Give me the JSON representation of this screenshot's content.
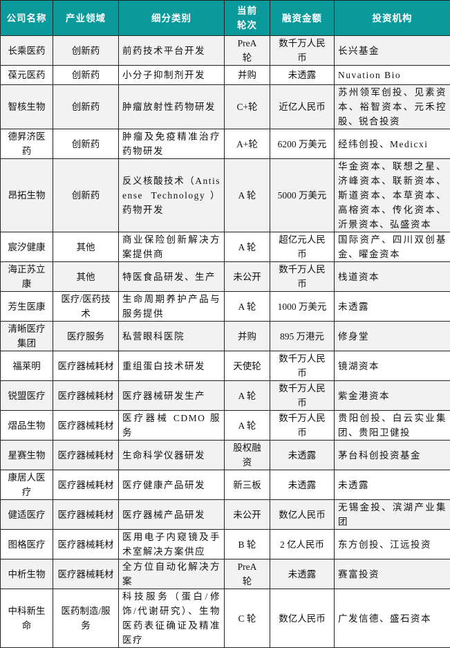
{
  "header_color": "#0b9a9c",
  "columns": [
    "公司名称",
    "产业领域",
    "细分类别",
    "当前轮次",
    "融资金额",
    "投资机构"
  ],
  "rows": [
    {
      "company": "长乘医药",
      "field": "创新药",
      "category": "前药技术平台开发",
      "round": "PreA 轮",
      "amount": "数千万人民币",
      "investors": "长兴基金"
    },
    {
      "company": "葆元医药",
      "field": "创新药",
      "category": "小分子抑制剂开发",
      "round": "并购",
      "amount": "未透露",
      "investors": "Nuvation Bio"
    },
    {
      "company": "智核生物",
      "field": "创新药",
      "category": "肿瘤放射性药物研发",
      "round": "C+轮",
      "amount": "近亿人民币",
      "investors": "苏州领军创投、见素资本、裕智资本、元禾控股、锐合投资"
    },
    {
      "company": "德昇济医药",
      "field": "创新药",
      "category": "肿瘤及免疫精准治疗药物研发",
      "round": "A+轮",
      "amount": "6200 万美元",
      "investors": "经纬创投、Medicxi"
    },
    {
      "company": "昂拓生物",
      "field": "创新药",
      "category": "反义核酸技术（Antisense Technology）药物开发",
      "round": "A 轮",
      "amount": "5000 万美元",
      "investors": "华金资本、联想之星、济峰资本、联新资本、斯道资本、本草资本、高榕资本、传化资本、沂景资本、弘盛资本"
    },
    {
      "company": "宸汐健康",
      "field": "其他",
      "category": "商业保险创新解决方案提供商",
      "round": "A 轮",
      "amount": "超亿元人民币",
      "investors": "国际资产、四川双创基金、曜金资本"
    },
    {
      "company": "海正苏立康",
      "field": "其他",
      "category": "特医食品研发、生产",
      "round": "未公开",
      "amount": "数千万人民币",
      "investors": "栈道资本"
    },
    {
      "company": "芳生医康",
      "field": "医疗/医药技术",
      "category": "生命周期养护产品与服务提供",
      "round": "A 轮",
      "amount": "1000 万美元",
      "investors": "未透露"
    },
    {
      "company": "清晰医疗集团",
      "field": "医疗服务",
      "category": "私营眼科医院",
      "round": "并购",
      "amount": "895 万港元",
      "investors": "修身堂"
    },
    {
      "company": "福莱明",
      "field": "医疗器械耗材",
      "category": "重组蛋白技术研发",
      "round": "天使轮",
      "amount": "数千万人民币",
      "investors": "镜湖资本"
    },
    {
      "company": "锐盟医疗",
      "field": "医疗器械耗材",
      "category": "医疗器械研发生产",
      "round": "A 轮",
      "amount": "数千万人民币",
      "investors": "紫金港资本"
    },
    {
      "company": "熠品生物",
      "field": "医疗器械耗材",
      "category": "医疗器械 CDMO 服务",
      "round": "A 轮",
      "amount": "数千万人民币",
      "investors": "贵阳创投、白云实业集团、贵阳卫健投"
    },
    {
      "company": "星赛生物",
      "field": "医疗器械耗材",
      "category": "生命科学仪器研发",
      "round": "股权融资",
      "amount": "未透露",
      "investors": "茅台科创投资基金"
    },
    {
      "company": "康居人医疗",
      "field": "医疗器械耗材",
      "category": "医疗健康产品研发",
      "round": "新三板",
      "amount": "未透露",
      "investors": "未透露"
    },
    {
      "company": "健适医疗",
      "field": "医疗器械耗材",
      "category": "医疗器械产品研发",
      "round": "未公开",
      "amount": "数亿人民币",
      "investors": "无锡金投、滨湖产业集团"
    },
    {
      "company": "图格医疗",
      "field": "医疗器械耗材",
      "category": "医用电子内窥镜及手术室解决方案供应",
      "round": "B 轮",
      "amount": "2 亿人民币",
      "investors": "东方创投、江远投资"
    },
    {
      "company": "中析生物",
      "field": "医疗器械耗材",
      "category": "全方位自动化解决方案",
      "round": "PreA 轮",
      "amount": "未透露",
      "investors": "赛富投资"
    },
    {
      "company": "中科新生命",
      "field": "医药制造/服务",
      "category": "科技服务（蛋白/修饰/代谢研究）、生物医药表征确证及精准医疗",
      "round": "C 轮",
      "amount": "数亿人民币",
      "investors": "广发信德、盛石资本"
    }
  ]
}
